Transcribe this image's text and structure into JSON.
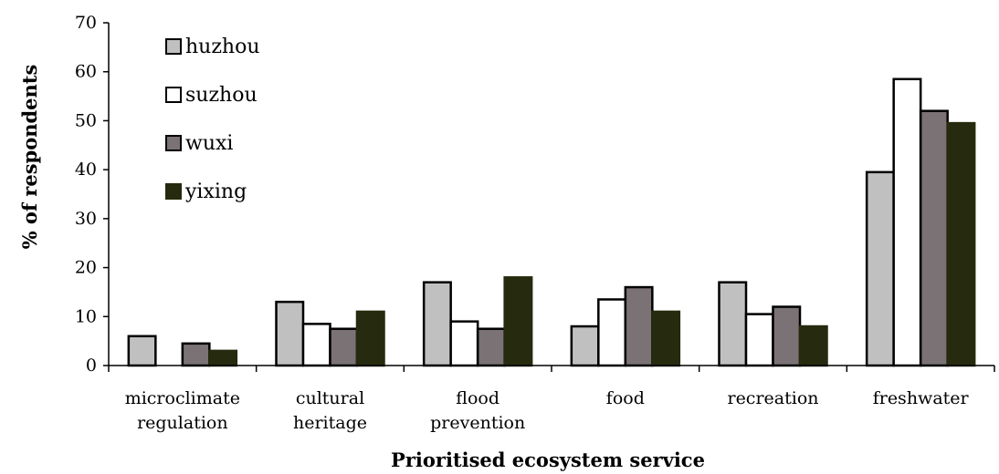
{
  "chart_data": {
    "type": "bar",
    "xlabel": "Prioritised ecosystem service",
    "ylabel": "% of respondents",
    "ylim": [
      0,
      70
    ],
    "yticks": [
      0,
      10,
      20,
      30,
      40,
      50,
      60,
      70
    ],
    "grid": false,
    "legend_position": "top-left",
    "categories": [
      [
        "microclimate",
        "regulation"
      ],
      [
        "cultural",
        "heritage"
      ],
      [
        "flood",
        "prevention"
      ],
      [
        "food"
      ],
      [
        "recreation"
      ],
      [
        "freshwater"
      ]
    ],
    "series": [
      {
        "name": "huzhou",
        "color": "#c0c0c0",
        "stroke": "#000000",
        "values": [
          6,
          13,
          17,
          8,
          17,
          39.5
        ]
      },
      {
        "name": "suzhou",
        "color": "#ffffff",
        "stroke": "#000000",
        "values": [
          0,
          8.5,
          9,
          13.5,
          10.5,
          58.5
        ]
      },
      {
        "name": "wuxi",
        "color": "#7a7274",
        "stroke": "#000000",
        "values": [
          4.5,
          7.5,
          7.5,
          16,
          12,
          52
        ]
      },
      {
        "name": "yixing",
        "color": "#262a0e",
        "stroke": "#262a0e",
        "values": [
          3,
          11,
          18,
          11,
          8,
          49.5
        ]
      }
    ]
  }
}
